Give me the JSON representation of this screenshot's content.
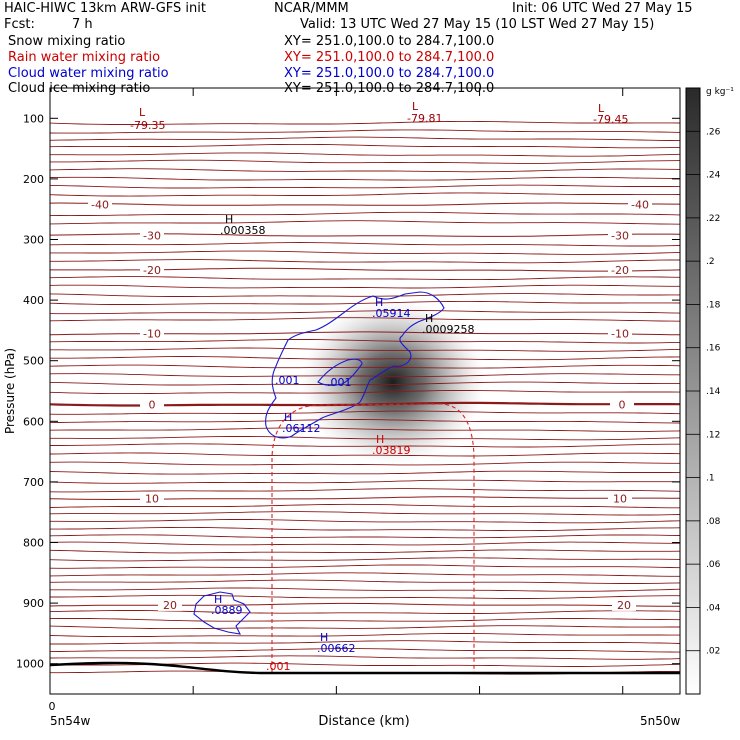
{
  "header": {
    "run_title": "HAIC-HIWC 13km ARW-GFS init",
    "org": "NCAR/MMM",
    "init": "Init: 06 UTC Wed 27 May 15",
    "fcst_label": "Fcst:",
    "fcst_value": "7 h",
    "valid": "Valid: 13 UTC Wed 27 May 15 (10 LST Wed 27 May 15)"
  },
  "fields": [
    {
      "label": "Snow mixing ratio",
      "xy": "XY= 251.0,100.0 to 284.7,100.0",
      "color": "#000000"
    },
    {
      "label": "Rain water mixing ratio",
      "xy": "XY= 251.0,100.0 to 284.7,100.0",
      "color": "#cc0000"
    },
    {
      "label": "Cloud water mixing ratio",
      "xy": "XY= 251.0,100.0 to 284.7,100.0",
      "color": "#0000cc"
    },
    {
      "label": "Cloud ice mixing ratio",
      "xy": "XY= 251.0,100.0 to 284.7,100.0",
      "color": "#000000"
    }
  ],
  "chart_data": {
    "type": "contour-cross-section",
    "ylabel": "Pressure (hPa)",
    "xlabel": "Distance (km)",
    "y_ticks": [
      "100",
      "200",
      "300",
      "400",
      "500",
      "600",
      "700",
      "800",
      "900",
      "1000"
    ],
    "x_tick_zero": "0",
    "x_left_label": "5n54w",
    "x_right_label": "5n50w",
    "ylim": [
      1050,
      50
    ],
    "colorbar": {
      "unit": "g kg⁻¹",
      "ticks": [
        ".02",
        ".04",
        ".06",
        ".08",
        ".1",
        ".12",
        ".14",
        ".16",
        ".18",
        ".2",
        ".22",
        ".24",
        ".26"
      ]
    },
    "temperature_contours": [
      {
        "value": 0,
        "label": "0",
        "p": 572
      },
      {
        "value": -10,
        "label": "-10",
        "p": 455
      },
      {
        "value": -20,
        "label": "-20",
        "p": 350
      },
      {
        "value": -30,
        "label": "-30",
        "p": 293
      },
      {
        "value": -40,
        "label": "-40",
        "p": 242
      },
      {
        "value": 10,
        "label": "10",
        "p": 727
      },
      {
        "value": 20,
        "label": "20",
        "p": 903
      }
    ],
    "extrema": [
      {
        "kind": "L",
        "value": "-79.35",
        "color": "#a00000"
      },
      {
        "kind": "L",
        "value": "-79.81",
        "color": "#a00000"
      },
      {
        "kind": "L",
        "value": "-79.45",
        "color": "#a00000"
      },
      {
        "kind": "H",
        "value": ".000358",
        "color": "#000000"
      },
      {
        "kind": "H",
        "value": ".05914",
        "color": "#0000cc"
      },
      {
        "kind": "H",
        "value": ".0009258",
        "color": "#000000"
      },
      {
        "kind": "H",
        "value": ".06112",
        "color": "#0000cc"
      },
      {
        "kind": "H",
        "value": ".03819",
        "color": "#cc0000"
      },
      {
        "kind": "H",
        "value": ".0889",
        "color": "#0000cc"
      },
      {
        "kind": "H",
        "value": ".00662",
        "color": "#0000cc"
      }
    ],
    "contour_labels": [
      {
        "value": ".001",
        "color": "#0000cc"
      },
      {
        "value": ".001",
        "color": "#0000cc"
      },
      {
        "value": ".001",
        "color": "#cc0000"
      }
    ]
  }
}
